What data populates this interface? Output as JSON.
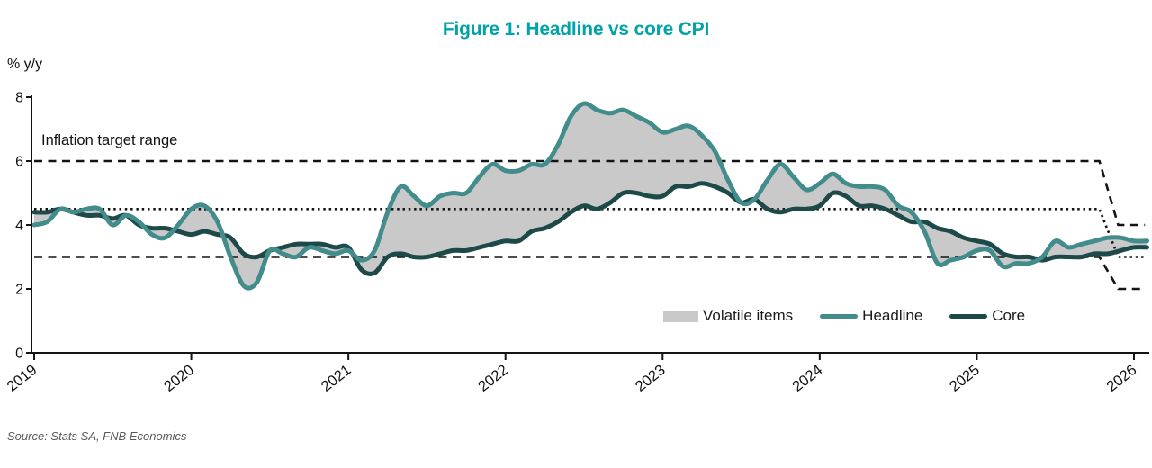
{
  "title": "Figure 1: Headline vs core CPI",
  "y_axis_unit_label": "% y/y",
  "inflation_target_label": "Inflation target range",
  "source": "Source: Stats SA, FNB Economics",
  "colors": {
    "title": "#00A3A8",
    "headline": "#438C8C",
    "core": "#1E4949",
    "volatile_band": "#C9C9C9",
    "reference_lines": "#141414",
    "axis": "#141414",
    "source_text": "#5A5A5A"
  },
  "legend": [
    {
      "label": "Volatile items",
      "swatch": "area",
      "color": "#C9C9C9"
    },
    {
      "label": "Headline",
      "swatch": "line",
      "color": "#438C8C"
    },
    {
      "label": "Core",
      "swatch": "line",
      "color": "#1E4949"
    }
  ],
  "chart_data": {
    "type": "line",
    "title": "Figure 1: Headline vs core CPI",
    "ylabel": "% y/y",
    "ylim": [
      0,
      8
    ],
    "y_ticks": [
      0,
      2,
      4,
      6,
      8
    ],
    "x_tick_years": [
      2019,
      2020,
      2021,
      2022,
      2023,
      2024,
      2025,
      2026
    ],
    "x_start": "2019-01",
    "x_frequency": "monthly",
    "band_between_series_label": "Volatile items",
    "grid": false,
    "legend_position": "inside lower right",
    "series": [
      {
        "name": "Headline",
        "values": [
          4.0,
          4.1,
          4.5,
          4.4,
          4.5,
          4.5,
          4.0,
          4.3,
          4.1,
          3.7,
          3.6,
          4.0,
          4.5,
          4.6,
          4.1,
          3.0,
          2.1,
          2.2,
          3.2,
          3.1,
          3.0,
          3.3,
          3.2,
          3.1,
          3.2,
          2.9,
          3.2,
          4.4,
          5.2,
          4.9,
          4.6,
          4.9,
          5.0,
          5.0,
          5.5,
          5.9,
          5.7,
          5.7,
          5.9,
          5.9,
          6.5,
          7.4,
          7.8,
          7.6,
          7.5,
          7.6,
          7.4,
          7.2,
          6.9,
          7.0,
          7.1,
          6.8,
          6.3,
          5.4,
          4.7,
          4.8,
          5.4,
          5.9,
          5.5,
          5.1,
          5.3,
          5.6,
          5.3,
          5.2,
          5.2,
          5.1,
          4.6,
          4.4,
          3.8,
          2.8,
          2.9,
          3.0,
          3.2,
          3.2,
          2.7,
          2.8,
          2.8,
          3.0,
          3.5,
          3.3,
          3.4,
          3.5,
          3.6,
          3.6,
          3.5,
          3.5
        ]
      },
      {
        "name": "Core",
        "values": [
          4.4,
          4.4,
          4.5,
          4.4,
          4.3,
          4.3,
          4.2,
          4.3,
          4.0,
          3.9,
          3.9,
          3.8,
          3.7,
          3.8,
          3.7,
          3.6,
          3.1,
          3.0,
          3.2,
          3.3,
          3.4,
          3.4,
          3.4,
          3.3,
          3.3,
          2.6,
          2.5,
          3.0,
          3.1,
          3.0,
          3.0,
          3.1,
          3.2,
          3.2,
          3.3,
          3.4,
          3.5,
          3.5,
          3.8,
          3.9,
          4.1,
          4.4,
          4.6,
          4.5,
          4.7,
          5.0,
          5.0,
          4.9,
          4.9,
          5.2,
          5.2,
          5.3,
          5.2,
          5.0,
          4.7,
          4.8,
          4.5,
          4.4,
          4.5,
          4.5,
          4.6,
          5.0,
          4.9,
          4.6,
          4.6,
          4.5,
          4.3,
          4.1,
          4.1,
          3.9,
          3.8,
          3.6,
          3.5,
          3.4,
          3.1,
          3.0,
          3.0,
          2.9,
          3.0,
          3.0,
          3.0,
          3.1,
          3.1,
          3.2,
          3.3,
          3.3
        ]
      }
    ],
    "inflation_target": {
      "label": "Inflation target range",
      "old_range": {
        "lower": 3.0,
        "upper": 6.0,
        "midpoint": 4.5,
        "from_year": 2019.0,
        "to_year": 2025.78
      },
      "new_range": {
        "lower": 2.0,
        "upper": 4.0,
        "midpoint": 3.0,
        "from_year": 2025.9,
        "to_year": 2026.07
      },
      "upper_style": "dashed",
      "midpoint_style": "dotted",
      "lower_style": "dashed"
    }
  }
}
